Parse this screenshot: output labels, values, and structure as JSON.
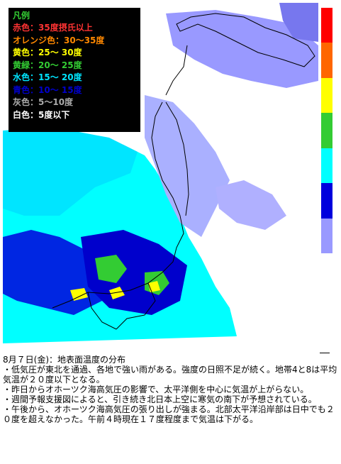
{
  "legend": {
    "title": "凡例",
    "title_color": "#33cc33",
    "items": [
      {
        "label": "赤色：35度摂氏以上",
        "color": "#ff3333"
      },
      {
        "label": "オレンジ色：30〜35度",
        "color": "#ff8800"
      },
      {
        "label": "黄色：25〜 30度",
        "color": "#ffff00"
      },
      {
        "label": "黄緑：20〜 25度",
        "color": "#33cc33"
      },
      {
        "label": "水色：15〜 20度",
        "color": "#00e5ff"
      },
      {
        "label": "青色：10〜 15度",
        "color": "#0000cc"
      },
      {
        "label": "灰色：5〜10度",
        "color": "#aaaaaa"
      },
      {
        "label": "白色：5度以下",
        "color": "#ffffff"
      }
    ]
  },
  "color_scale": [
    "#ff0000",
    "#ff6600",
    "#ffff00",
    "#33cc33",
    "#00ffff",
    "#0000dd",
    "#9999ff"
  ],
  "caption": {
    "heading": "8月７日(金)：地表面温度の分布",
    "bullets": [
      "・低気圧が東北を通過、各地で強い雨がある。強度の日照不足が続く。地帯4と8は平均気温が２０度以下となる。",
      "・昨日からオホーツク海高気圧の影響で、太平洋側を中心に気温が上がらない。",
      "・週間予報支援図によると、引き続き北日本上空に寒気の南下が予想されている。",
      "・午後から、オホーツク海高気圧の張り出しが強まる。北部太平洋沿岸部は日中でも２０度を超えなかった。午前４時現在１７度程度まで気温は下がる。"
    ]
  }
}
